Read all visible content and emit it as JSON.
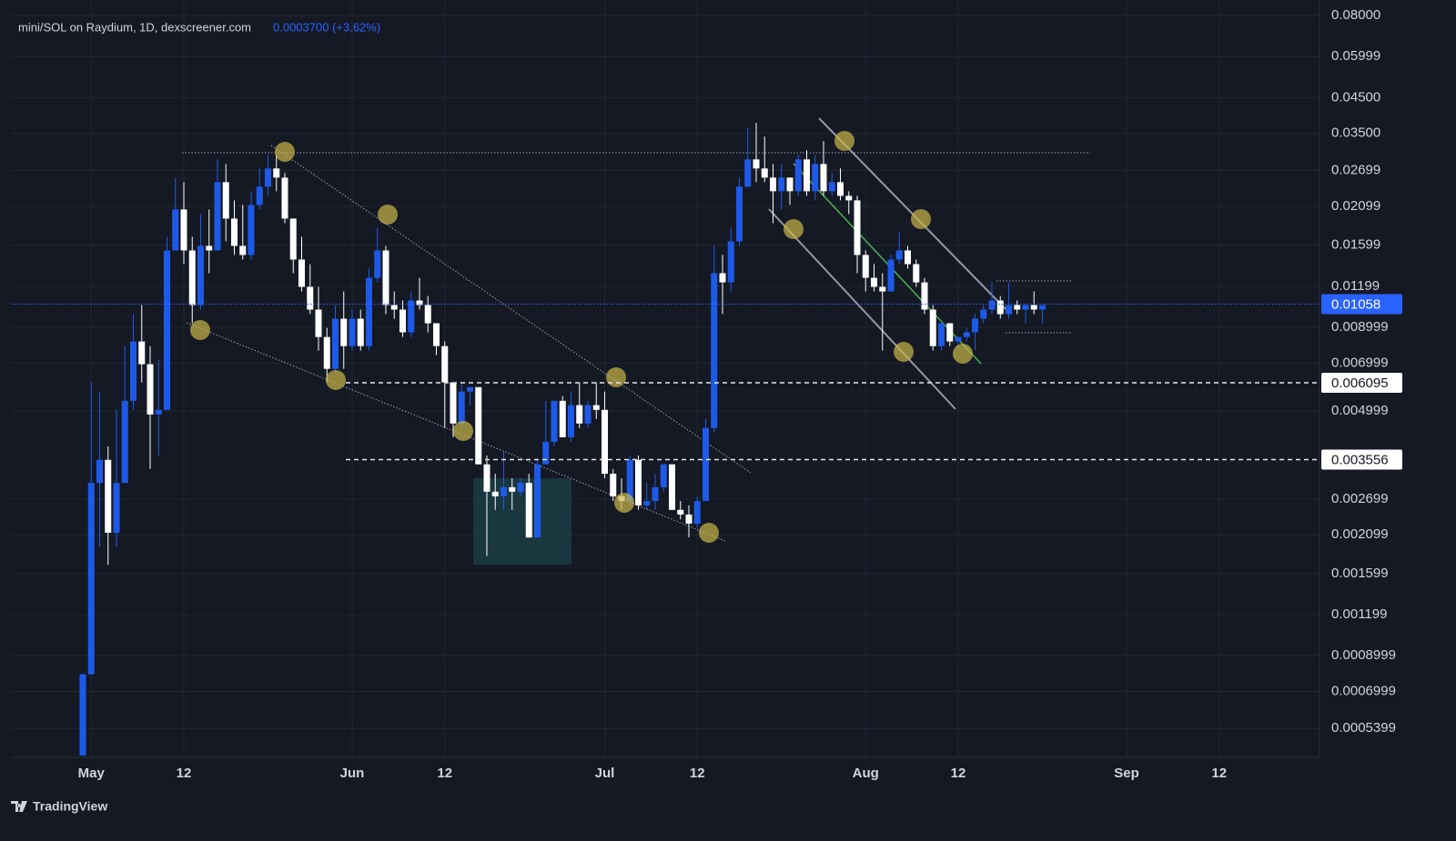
{
  "chart_data": {
    "type": "candlestick",
    "title": "mini/SOL on Raydium, 1D, dexscreener.com",
    "subtitle": "0.0003700 (+3.62%)",
    "brand": "TradingView",
    "log_scale": true,
    "grid": true,
    "up_color": "#1e5ae8",
    "down_color": "#ffffff",
    "categories": [
      "Apr 30",
      "May 1",
      "May 2",
      "May 3",
      "May 4",
      "May 5",
      "May 6",
      "May 7",
      "May 8",
      "May 9",
      "May 10",
      "May 11",
      "May 12",
      "May 13",
      "May 14",
      "May 15",
      "May 16",
      "May 17",
      "May 18",
      "May 19",
      "May 20",
      "May 21",
      "May 22",
      "May 23",
      "May 24",
      "May 25",
      "May 26",
      "May 27",
      "May 28",
      "May 29",
      "May 30",
      "May 31",
      "Jun 1",
      "Jun 2",
      "Jun 3",
      "Jun 4",
      "Jun 5",
      "Jun 6",
      "Jun 7",
      "Jun 8",
      "Jun 9",
      "Jun 10",
      "Jun 11",
      "Jun 12",
      "Jun 13",
      "Jun 14",
      "Jun 15",
      "Jun 16",
      "Jun 17",
      "Jun 18",
      "Jun 19",
      "Jun 20",
      "Jun 21",
      "Jun 22",
      "Jun 23",
      "Jun 24",
      "Jun 25",
      "Jun 26",
      "Jun 27",
      "Jun 28",
      "Jun 29",
      "Jun 30",
      "Jul 1",
      "Jul 2",
      "Jul 3",
      "Jul 4",
      "Jul 5",
      "Jul 6",
      "Jul 7",
      "Jul 8",
      "Jul 9",
      "Jul 10",
      "Jul 11",
      "Jul 12",
      "Jul 13",
      "Jul 14",
      "Jul 15",
      "Jul 16",
      "Jul 17",
      "Jul 18",
      "Jul 19",
      "Jul 20",
      "Jul 21",
      "Jul 22",
      "Jul 23",
      "Jul 24",
      "Jul 25",
      "Jul 26",
      "Jul 27",
      "Jul 28",
      "Jul 29",
      "Jul 30",
      "Jul 31",
      "Aug 1",
      "Aug 2",
      "Aug 3",
      "Aug 4",
      "Aug 5",
      "Aug 6",
      "Aug 7",
      "Aug 8",
      "Aug 9",
      "Aug 10",
      "Aug 11",
      "Aug 12",
      "Aug 13",
      "Aug 14",
      "Aug 15",
      "Aug 16",
      "Aug 17",
      "Aug 18",
      "Aug 19",
      "Aug 20",
      "Aug 21",
      "Aug 22",
      "Aug 23",
      "Aug 24",
      "Aug 25",
      "Aug 26",
      "Aug 27",
      "Aug 28",
      "Aug 29",
      "Aug 30",
      "Aug 31",
      "Sep 1",
      "Sep 2",
      "Sep 3",
      "Sep 4",
      "Sep 5",
      "Sep 6",
      "Sep 7",
      "Sep 8",
      "Sep 9",
      "Sep 10",
      "Sep 11",
      "Sep 12",
      "Sep 13",
      "Sep 14"
    ],
    "open": [
      0.000447,
      0.00079,
      0.00302,
      0.00355,
      0.00213,
      0.00302,
      0.00537,
      0.00814,
      0.00694,
      0.00488,
      0.00504,
      0.01541,
      0.02054,
      0.01541,
      0.01051,
      0.01591,
      0.01541,
      0.02487,
      0.01927,
      0.01591,
      0.01493,
      0.0212,
      0.02409,
      0.02738,
      0.02568,
      0.01927,
      0.01446,
      0.01194,
      0.01018,
      0.0084,
      0.00672,
      0.00955,
      0.00788,
      0.00955,
      0.00788,
      0.01272,
      0.01541,
      0.01051,
      0.01018,
      0.00868,
      0.01085,
      0.01051,
      0.00925,
      0.00788,
      0.00611,
      0.00458,
      0.00573,
      0.00591,
      0.00344,
      0.00284,
      0.00275,
      0.00293,
      0.00284,
      0.00302,
      0.00206,
      0.00344,
      0.00403,
      0.00537,
      0.00416,
      0.00521,
      0.00458,
      0.00521,
      0.00504,
      0.00322,
      0.00275,
      0.00266,
      0.00355,
      0.00258,
      0.00266,
      0.00293,
      0.00344,
      0.0025,
      0.00242,
      0.00227,
      0.00266,
      0.00444,
      0.01314,
      0.01232,
      0.01643,
      0.02409,
      0.02918,
      0.02738,
      0.02568,
      0.02334,
      0.02568,
      0.02334,
      0.02918,
      0.02334,
      0.02826,
      0.02334,
      0.02487,
      0.0226,
      0.02189,
      0.01493,
      0.01272,
      0.01194,
      0.01156,
      0.01446,
      0.01541,
      0.014,
      0.01232,
      0.01018,
      0.00788,
      0.00925,
      0.00814,
      0.0084,
      0.00868,
      0.00955,
      0.01018,
      0.01085,
      0.00986,
      0.01051,
      0.01018,
      0.01051,
      0.01018,
      null,
      null,
      null,
      null,
      null,
      null,
      null,
      null,
      null,
      null,
      null,
      null,
      null,
      null,
      null,
      null,
      null,
      null,
      null,
      null,
      null,
      null,
      null
    ],
    "high": [
      0.00079,
      0.00611,
      0.00573,
      0.0039,
      0.00504,
      0.00788,
      0.00986,
      0.01051,
      0.00788,
      0.00716,
      0.01696,
      0.02568,
      0.02487,
      0.01696,
      0.01989,
      0.02054,
      0.02918,
      0.02826,
      0.02189,
      0.0212,
      0.02334,
      0.02738,
      0.03013,
      0.03013,
      0.02652,
      0.01927,
      0.01696,
      0.014,
      0.01194,
      0.00896,
      0.01051,
      0.01156,
      0.01018,
      0.01018,
      0.01356,
      0.01808,
      0.01591,
      0.01156,
      0.01085,
      0.01156,
      0.01272,
      0.0112,
      0.00925,
      0.00814,
      0.00611,
      0.00611,
      0.00591,
      0.00591,
      0.00366,
      0.00322,
      0.00378,
      0.00312,
      0.00312,
      0.00322,
      0.00355,
      0.00537,
      0.00537,
      0.00555,
      0.00573,
      0.00611,
      0.00537,
      0.00611,
      0.00573,
      0.00333,
      0.00312,
      0.00366,
      0.00366,
      0.00302,
      0.00322,
      0.00344,
      0.00344,
      0.00266,
      0.00258,
      0.00275,
      0.00473,
      0.01591,
      0.01493,
      0.01808,
      0.02568,
      0.03649,
      0.0377,
      0.03423,
      0.02826,
      0.02826,
      0.02568,
      0.03013,
      0.0311,
      0.03013,
      0.03316,
      0.02652,
      0.02738,
      0.02334,
      0.0226,
      0.01541,
      0.014,
      0.01314,
      0.01493,
      0.01751,
      0.01591,
      0.01446,
      0.01272,
      0.01051,
      0.00925,
      0.00925,
      0.0084,
      0.00896,
      0.00986,
      0.01051,
      0.01232,
      0.0112,
      0.01232,
      0.01085,
      0.01051,
      0.01156,
      0.01051,
      null,
      null,
      null,
      null,
      null,
      null,
      null,
      null,
      null,
      null,
      null,
      null,
      null,
      null,
      null,
      null,
      null,
      null,
      null,
      null,
      null,
      null,
      null
    ],
    "low": [
      0.000447,
      0.00079,
      0.00193,
      0.0017,
      0.00193,
      0.00302,
      0.00504,
      0.00611,
      0.00333,
      0.00366,
      0.00504,
      0.01541,
      0.014,
      0.00925,
      0.01018,
      0.01314,
      0.01541,
      0.01643,
      0.01493,
      0.01446,
      0.01446,
      0.02054,
      0.0226,
      0.02334,
      0.01866,
      0.01314,
      0.01156,
      0.00986,
      0.00764,
      0.00611,
      0.00651,
      0.00672,
      0.00764,
      0.00764,
      0.00764,
      0.01232,
      0.00986,
      0.00955,
      0.0084,
      0.0084,
      0.01018,
      0.00868,
      0.0074,
      0.00444,
      0.00416,
      0.00444,
      0.00521,
      0.00344,
      0.00181,
      0.0025,
      0.0025,
      0.0025,
      0.00275,
      0.00206,
      0.00206,
      0.00344,
      0.0039,
      0.00416,
      0.00403,
      0.00444,
      0.00444,
      0.00473,
      0.00312,
      0.00266,
      0.0025,
      0.00258,
      0.0025,
      0.0025,
      0.0025,
      0.00284,
      0.0025,
      0.00234,
      0.00206,
      0.0022,
      0.00266,
      0.0043,
      0.00986,
      0.01156,
      0.01591,
      0.02409,
      0.02487,
      0.02487,
      0.01866,
      0.02054,
      0.0212,
      0.0226,
      0.0226,
      0.02189,
      0.0226,
      0.0226,
      0.02189,
      0.01989,
      0.01314,
      0.01156,
      0.01156,
      0.00764,
      0.01156,
      0.014,
      0.01356,
      0.01194,
      0.00986,
      0.00764,
      0.00764,
      0.00788,
      0.00788,
      0.00814,
      0.00764,
      0.00925,
      0.00986,
      0.00955,
      0.00955,
      0.00986,
      0.00925,
      0.00986,
      0.00925,
      null,
      null,
      null,
      null,
      null,
      null,
      null,
      null,
      null,
      null,
      null,
      null,
      null,
      null,
      null,
      null,
      null,
      null,
      null,
      null,
      null,
      null,
      null
    ],
    "close": [
      0.00079,
      0.00302,
      0.00355,
      0.00213,
      0.00302,
      0.00537,
      0.00814,
      0.00694,
      0.00488,
      0.00504,
      0.01541,
      0.02054,
      0.01541,
      0.01051,
      0.01591,
      0.01541,
      0.02487,
      0.01927,
      0.01591,
      0.01493,
      0.0212,
      0.02409,
      0.02738,
      0.02568,
      0.01927,
      0.01446,
      0.01194,
      0.01018,
      0.0084,
      0.00672,
      0.00955,
      0.00788,
      0.00955,
      0.00788,
      0.01272,
      0.01541,
      0.01051,
      0.01018,
      0.00868,
      0.01085,
      0.01051,
      0.00925,
      0.00788,
      0.00611,
      0.00458,
      0.00573,
      0.00591,
      0.00344,
      0.00284,
      0.00275,
      0.00293,
      0.00284,
      0.00302,
      0.00206,
      0.00344,
      0.00403,
      0.00537,
      0.00416,
      0.00521,
      0.00458,
      0.00521,
      0.00504,
      0.00322,
      0.00275,
      0.00266,
      0.00355,
      0.00258,
      0.00266,
      0.00293,
      0.00344,
      0.0025,
      0.00242,
      0.00227,
      0.00266,
      0.00444,
      0.01314,
      0.01232,
      0.01643,
      0.02409,
      0.02918,
      0.02738,
      0.02568,
      0.02334,
      0.02568,
      0.02334,
      0.02918,
      0.02334,
      0.02826,
      0.02334,
      0.02487,
      0.0226,
      0.02189,
      0.01493,
      0.01272,
      0.01194,
      0.01156,
      0.01446,
      0.01541,
      0.014,
      0.01232,
      0.01018,
      0.00788,
      0.00925,
      0.00814,
      0.0084,
      0.00868,
      0.00955,
      0.01018,
      0.01085,
      0.00986,
      0.01051,
      0.01018,
      0.01051,
      0.01018,
      0.01051,
      null,
      null,
      null,
      null,
      null,
      null,
      null,
      null,
      null,
      null,
      null,
      null,
      null,
      null,
      null,
      null,
      null,
      null,
      null,
      null,
      null,
      null,
      null
    ],
    "ylim": [
      0.000441,
      0.0892
    ],
    "yticks": [
      {
        "value": 0.08,
        "label": "0.08000"
      },
      0.05999,
      {
        "value": 0.045,
        "label": "0.04500"
      },
      {
        "value": 0.035,
        "label": "0.03500"
      },
      0.02699,
      0.02099,
      0.01599,
      0.01199,
      0.008999,
      0.006999,
      0.004999,
      0.002699,
      0.002099,
      0.001599,
      0.001199,
      0.0008999,
      0.0006999,
      0.0005399
    ],
    "xticks": [
      {
        "value": "May 1",
        "label": "May"
      },
      {
        "value": "May 12",
        "label": "12"
      },
      {
        "value": "Jun 1",
        "label": "Jun"
      },
      {
        "value": "Jun 12",
        "label": "12"
      },
      {
        "value": "Jul 1",
        "label": "Jul"
      },
      {
        "value": "Jul 12",
        "label": "12"
      },
      {
        "value": "Aug 1",
        "label": "Aug"
      },
      {
        "value": "Aug 12",
        "label": "12"
      },
      {
        "value": "Sep 1",
        "label": "Sep"
      },
      {
        "value": "Sep 12",
        "label": "12"
      }
    ],
    "last_price": 0.01058,
    "price_lines": [
      0.006095,
      0.003556
    ]
  }
}
